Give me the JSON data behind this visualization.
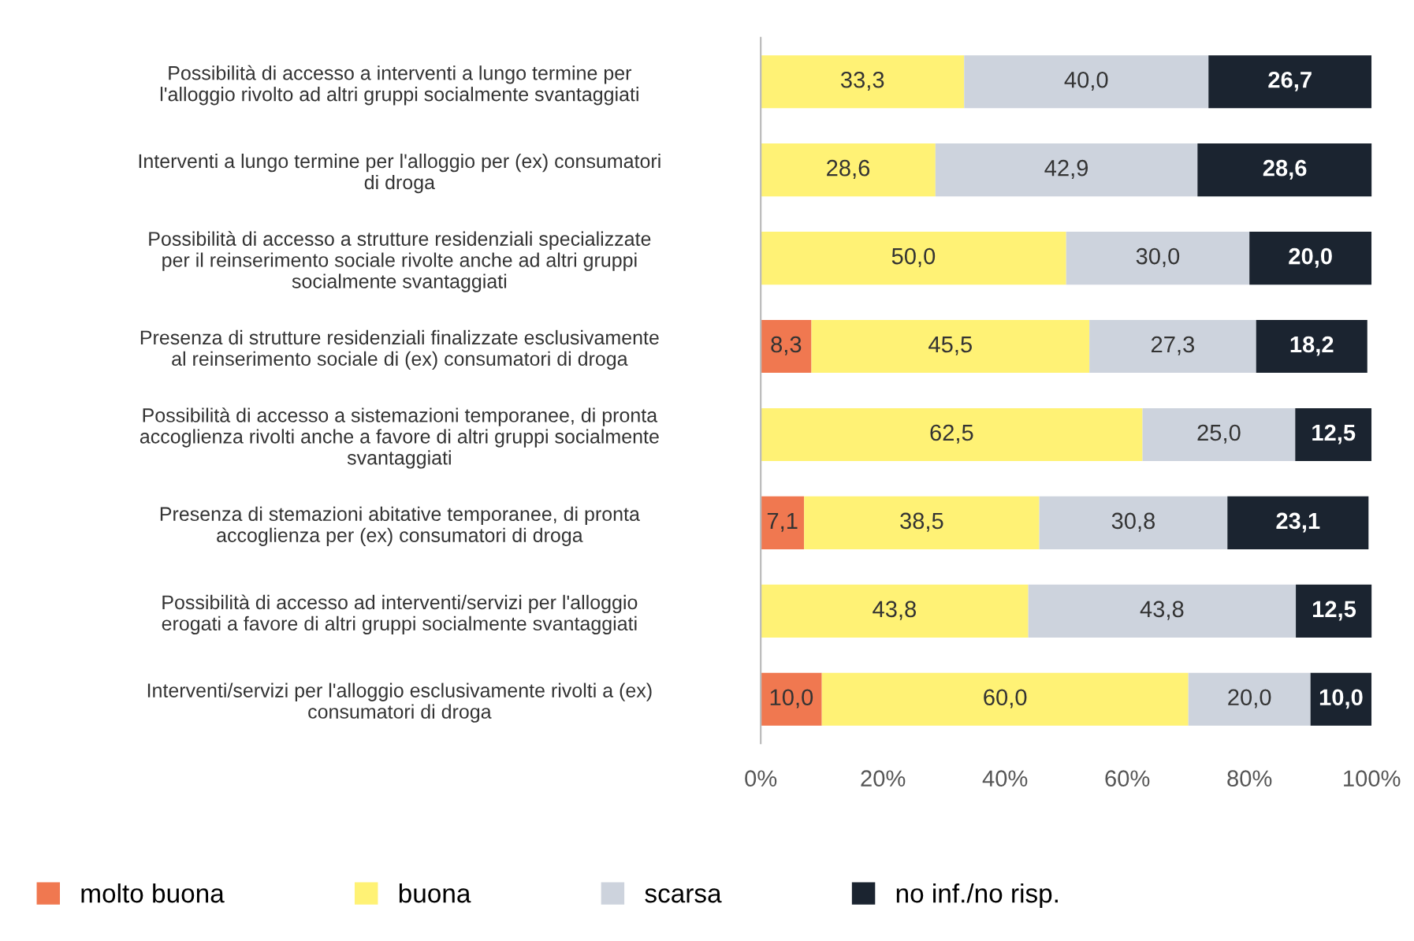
{
  "chart_data": {
    "type": "bar",
    "orientation": "horizontal",
    "stacked": true,
    "legend": "bottom",
    "grid": false,
    "categories": [
      "Possibilità di accesso a interventi a lungo termine per\nl'alloggio rivolto ad altri gruppi socialmente svantaggiati",
      "Interventi a lungo termine per l'alloggio per (ex) consumatori\ndi droga",
      "Possibilità di accesso a strutture residenziali specializzate\nper il reinserimento sociale rivolte anche ad altri gruppi\nsocialmente svantaggiati",
      "Presenza di strutture residenziali finalizzate esclusivamente\nal reinserimento sociale di (ex) consumatori di droga",
      "Possibilità di accesso a sistemazioni temporanee, di pronta\naccoglienza rivolti anche a favore di altri gruppi socialmente\nsvantaggiati",
      "Presenza di stemazioni abitative temporanee, di pronta\naccoglienza per (ex) consumatori di droga",
      "Possibilità di accesso ad interventi/servizi per l'alloggio\nerogati a favore di altri gruppi socialmente svantaggiati",
      "Interventi/servizi per l'alloggio esclusivamente rivolti a (ex)\nconsumatori di droga"
    ],
    "series": [
      {
        "name": "molto buona",
        "color": "#f07850",
        "values": [
          0,
          0,
          0,
          8.3,
          0,
          7.1,
          0,
          10.0
        ],
        "value_labels": [
          null,
          null,
          null,
          "8,3",
          null,
          "7,1",
          null,
          "10,0"
        ]
      },
      {
        "name": "buona",
        "color": "#fff275",
        "values": [
          33.3,
          28.6,
          50.0,
          45.5,
          62.5,
          38.5,
          43.8,
          60.0
        ],
        "value_labels": [
          "33,3",
          "28,6",
          "50,0",
          "45,5",
          "62,5",
          "38,5",
          "43,8",
          "60,0"
        ]
      },
      {
        "name": "scarsa",
        "color": "#cdd3dd",
        "values": [
          40.0,
          42.9,
          30.0,
          27.3,
          25.0,
          30.8,
          43.8,
          20.0
        ],
        "value_labels": [
          "40,0",
          "42,9",
          "30,0",
          "27,3",
          "25,0",
          "30,8",
          "43,8",
          "20,0"
        ]
      },
      {
        "name": "no inf./no risp.",
        "color": "#1b2430",
        "values": [
          26.7,
          28.6,
          20.0,
          18.2,
          12.5,
          23.1,
          12.5,
          10.0
        ],
        "value_labels": [
          "26,7",
          "28,6",
          "20,0",
          "18,2",
          "12,5",
          "23,1",
          "12,5",
          "10,0"
        ]
      }
    ],
    "xlim": [
      0,
      100
    ],
    "xticks": [
      {
        "value": 0,
        "label": "0%"
      },
      {
        "value": 20,
        "label": "20%"
      },
      {
        "value": 40,
        "label": "40%"
      },
      {
        "value": 60,
        "label": "60%"
      },
      {
        "value": 80,
        "label": "80%"
      },
      {
        "value": 100,
        "label": "100%"
      }
    ]
  }
}
